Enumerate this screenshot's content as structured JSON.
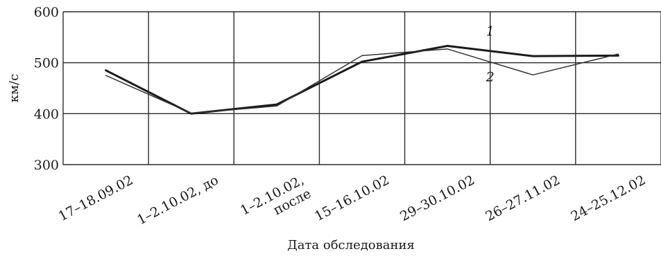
{
  "chart_data": {
    "type": "line",
    "title": "",
    "xlabel": "Дата обследования",
    "ylabel": "км/с",
    "ylim": [
      300,
      600
    ],
    "yticks": [
      "300",
      "400",
      "500",
      "600"
    ],
    "categories": [
      [
        "17–18.09.02"
      ],
      [
        "1–2.10.02, до"
      ],
      [
        "1–2.10.02,",
        "после"
      ],
      [
        "15–16.10.02"
      ],
      [
        "29–30.10.02"
      ],
      [
        "26–27.11.02"
      ],
      [
        "24–25.12.02"
      ]
    ],
    "grid": true,
    "series": [
      {
        "name": "1",
        "values": [
          485,
          400,
          418,
          502,
          533,
          513,
          514
        ],
        "color": "#1a1a1a"
      },
      {
        "name": "2",
        "values": [
          475,
          401,
          415,
          514,
          527,
          476,
          517
        ],
        "color": "#333333"
      }
    ]
  }
}
